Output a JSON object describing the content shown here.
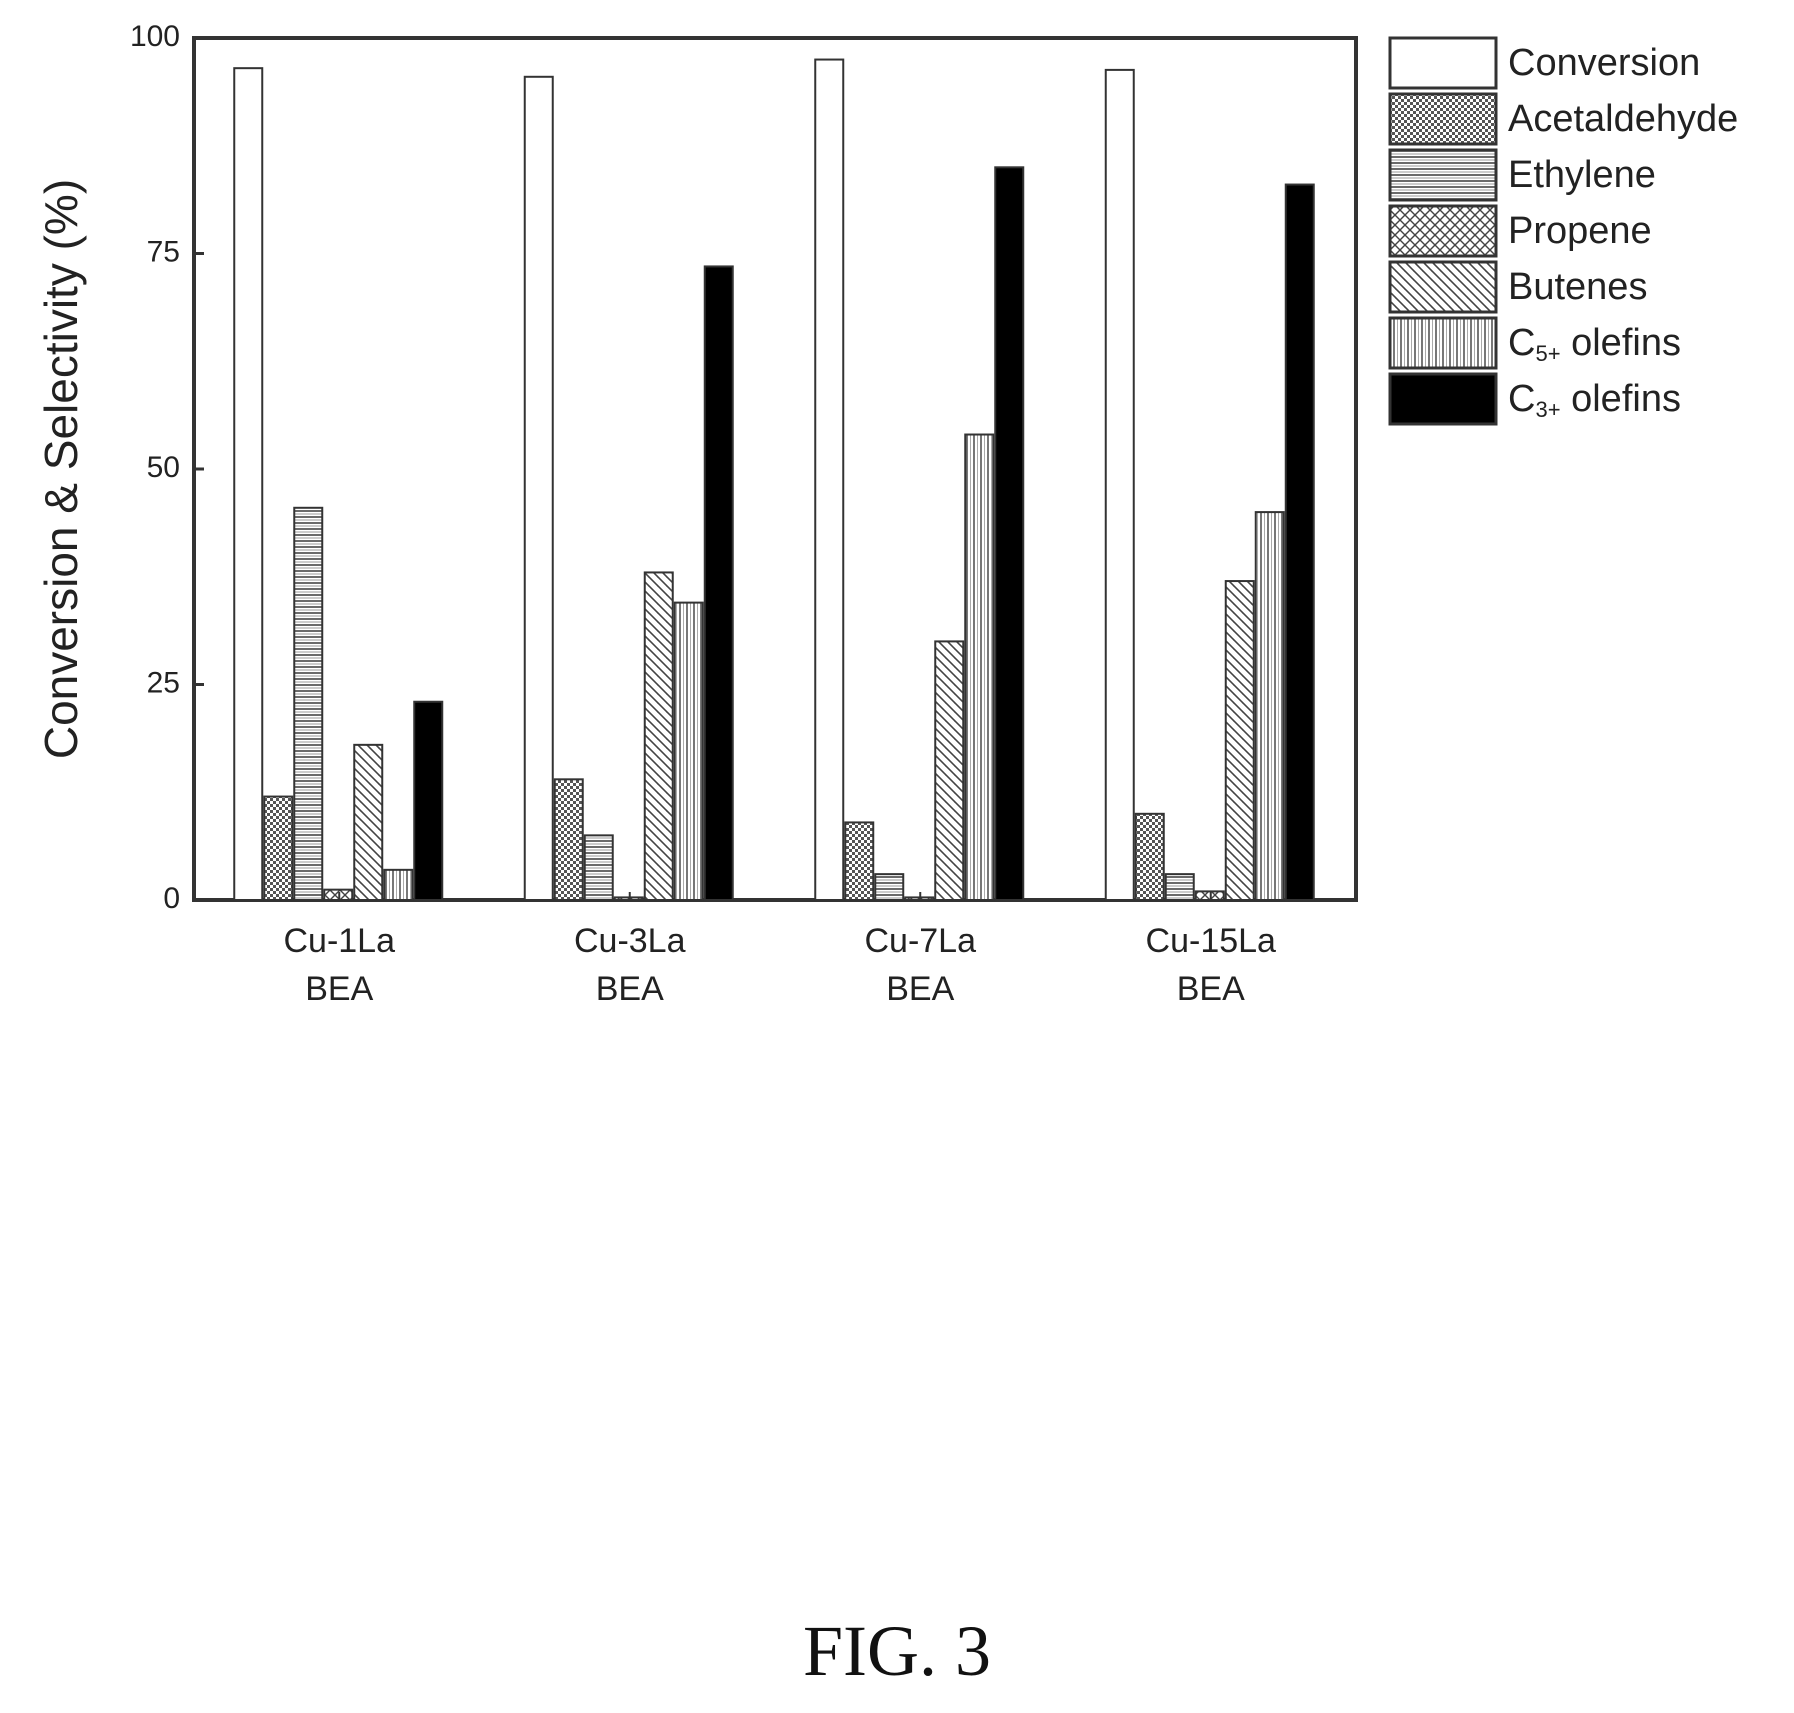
{
  "figure_caption": "FIG. 3",
  "chart_data": {
    "type": "bar",
    "ylabel": "Conversion & Selectivity (%)",
    "xlabel": "",
    "ylim": [
      0,
      100
    ],
    "yticks": [
      "0",
      "25",
      "50",
      "75",
      "100"
    ],
    "categories": [
      {
        "line1": "Cu-1La",
        "line2": "BEA"
      },
      {
        "line1": "Cu-3La",
        "line2": "BEA"
      },
      {
        "line1": "Cu-7La",
        "line2": "BEA"
      },
      {
        "line1": "Cu-15La",
        "line2": "BEA"
      }
    ],
    "legend_position": "top-right",
    "series": [
      {
        "name": "Conversion",
        "pattern": "white",
        "values": [
          96.5,
          95.5,
          97.5,
          96.3
        ]
      },
      {
        "name": "Acetaldehyde",
        "pattern": "dense-dots",
        "values": [
          12,
          14,
          9,
          10
        ]
      },
      {
        "name": "Ethylene",
        "pattern": "horizontal-lines",
        "values": [
          45.5,
          7.5,
          3,
          3
        ]
      },
      {
        "name": "Propene",
        "pattern": "crosshatch",
        "values": [
          1.2,
          0.3,
          0.3,
          1
        ]
      },
      {
        "name": "Butenes",
        "pattern": "diagonal-lines",
        "values": [
          18,
          38,
          30,
          37
        ]
      },
      {
        "name": "C",
        "sub": "5+",
        "suffix": " olefins",
        "pattern": "vertical-lines",
        "values": [
          3.5,
          34.5,
          54,
          45
        ]
      },
      {
        "name": "C",
        "sub": "3+",
        "suffix": " olefins",
        "pattern": "black",
        "values": [
          23,
          73.5,
          85,
          83
        ]
      }
    ]
  }
}
